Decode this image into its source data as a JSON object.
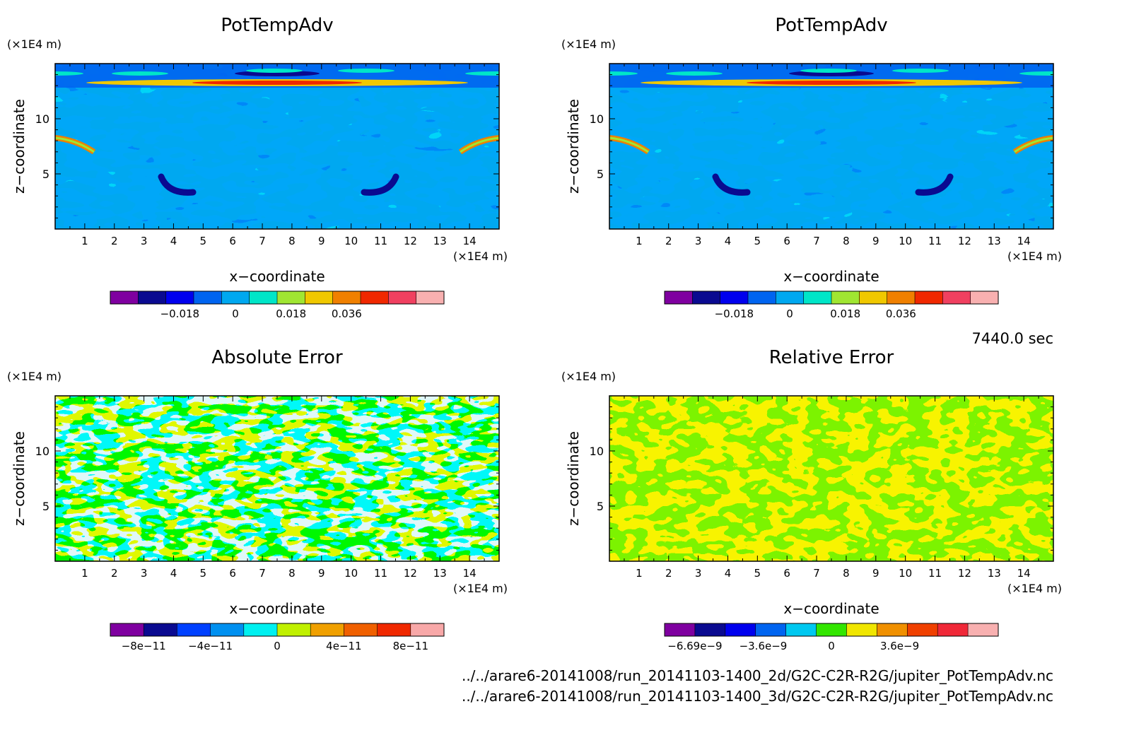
{
  "time_label": "7440.0 sec",
  "files": [
    "../../arare6-20141008/run_20141103-1400_2d/G2C-C2R-R2G/jupiter_PotTempAdv.nc",
    "../../arare6-20141008/run_20141103-1400_3d/G2C-C2R-R2G/jupiter_PotTempAdv.nc"
  ],
  "chart_data": [
    {
      "type": "heatmap",
      "title": "PotTempAdv",
      "xlabel": "x−coordinate",
      "ylabel": "z−coordinate",
      "x_unit": "(×1E4 m)",
      "y_unit": "(×1E4 m)",
      "xlim": [
        0,
        15
      ],
      "ylim": [
        0,
        15
      ],
      "x_ticks": [
        "1",
        "2",
        "3",
        "4",
        "5",
        "6",
        "7",
        "8",
        "9",
        "10",
        "11",
        "12",
        "13",
        "14"
      ],
      "y_ticks": [
        "5",
        "10"
      ],
      "colorbar": {
        "colors": [
          "#7f00a0",
          "#0a0a90",
          "#0000ee",
          "#0064f0",
          "#00a8f0",
          "#00e6c8",
          "#a0e632",
          "#f0c800",
          "#f08000",
          "#f02800",
          "#f04060",
          "#f8b0b0"
        ],
        "levels": [
          -0.027,
          -0.018,
          -0.009,
          0,
          0.009,
          0.018,
          0.027,
          0.036,
          0.045
        ],
        "tick_labels": [
          "−0.018",
          "0",
          "0.018",
          "0.036"
        ],
        "tick_values": [
          -0.018,
          0,
          0.018,
          0.036
        ]
      }
    },
    {
      "type": "heatmap",
      "title": "PotTempAdv",
      "xlabel": "x−coordinate",
      "ylabel": "z−coordinate",
      "x_unit": "(×1E4 m)",
      "y_unit": "(×1E4 m)",
      "xlim": [
        0,
        15
      ],
      "ylim": [
        0,
        15
      ],
      "x_ticks": [
        "1",
        "2",
        "3",
        "4",
        "5",
        "6",
        "7",
        "8",
        "9",
        "10",
        "11",
        "12",
        "13",
        "14"
      ],
      "y_ticks": [
        "5",
        "10"
      ],
      "colorbar": {
        "colors": [
          "#7f00a0",
          "#0a0a90",
          "#0000ee",
          "#0064f0",
          "#00a8f0",
          "#00e6c8",
          "#a0e632",
          "#f0c800",
          "#f08000",
          "#f02800",
          "#f04060",
          "#f8b0b0"
        ],
        "levels": [
          -0.027,
          -0.018,
          -0.009,
          0,
          0.009,
          0.018,
          0.027,
          0.036,
          0.045
        ],
        "tick_labels": [
          "−0.018",
          "0",
          "0.018",
          "0.036"
        ],
        "tick_values": [
          -0.018,
          0,
          0.018,
          0.036
        ]
      }
    },
    {
      "type": "heatmap",
      "title": "Absolute Error",
      "xlabel": "x−coordinate",
      "ylabel": "z−coordinate",
      "x_unit": "(×1E4 m)",
      "y_unit": "(×1E4 m)",
      "xlim": [
        0,
        15
      ],
      "ylim": [
        0,
        15
      ],
      "x_ticks": [
        "1",
        "2",
        "3",
        "4",
        "5",
        "6",
        "7",
        "8",
        "9",
        "10",
        "11",
        "12",
        "13",
        "14"
      ],
      "y_ticks": [
        "5",
        "10"
      ],
      "colorbar": {
        "colors": [
          "#7f00a0",
          "#0a0a90",
          "#0040ff",
          "#0090f0",
          "#00f0f0",
          "#c0f000",
          "#f0a000",
          "#f06000",
          "#f02800",
          "#f8a8a8"
        ],
        "tick_labels": [
          "−8e−11",
          "−4e−11",
          "0",
          "4e−11",
          "8e−11"
        ],
        "tick_values": [
          -8e-11,
          -4e-11,
          0,
          4e-11,
          8e-11
        ]
      }
    },
    {
      "type": "heatmap",
      "title": "Relative Error",
      "xlabel": "x−coordinate",
      "ylabel": "z−coordinate",
      "x_unit": "(×1E4 m)",
      "y_unit": "(×1E4 m)",
      "xlim": [
        0,
        15
      ],
      "ylim": [
        0,
        15
      ],
      "x_ticks": [
        "1",
        "2",
        "3",
        "4",
        "5",
        "6",
        "7",
        "8",
        "9",
        "10",
        "11",
        "12",
        "13",
        "14"
      ],
      "y_ticks": [
        "5",
        "10"
      ],
      "colorbar": {
        "colors": [
          "#7f00a0",
          "#0a0a90",
          "#0000ee",
          "#0064f0",
          "#00c8f0",
          "#32e600",
          "#f0e600",
          "#f09000",
          "#f04000",
          "#f02838",
          "#f8b0b0"
        ],
        "tick_labels": [
          "−6.69e−9",
          "−3.6e−9",
          "0",
          "3.6e−9"
        ],
        "tick_values": [
          -6.69e-09,
          -3.6e-09,
          0,
          3.6e-09
        ]
      }
    }
  ]
}
